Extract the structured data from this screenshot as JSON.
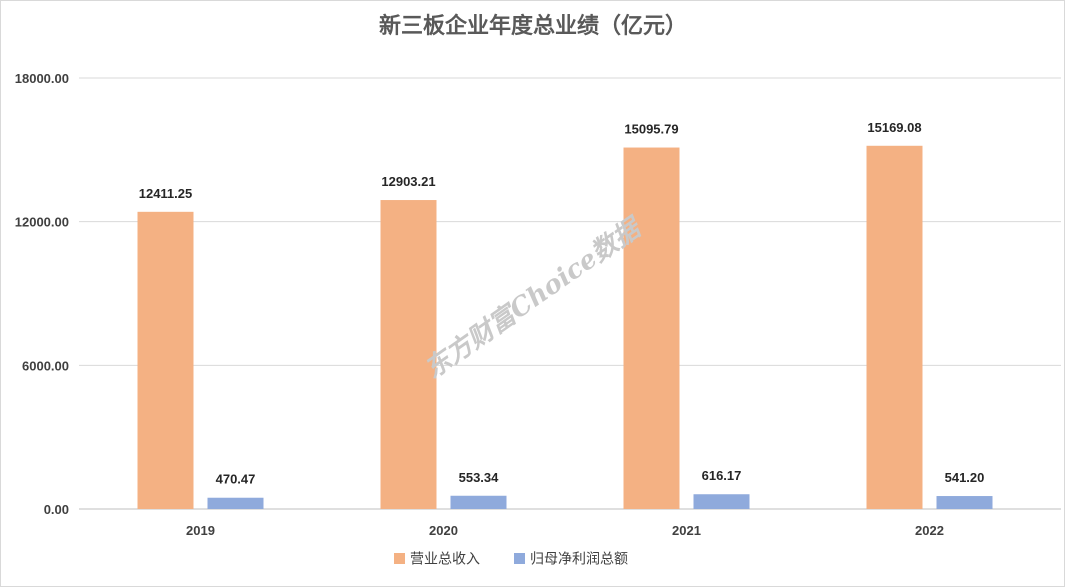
{
  "chart_data": {
    "type": "bar",
    "title": "新三板企业年度总业绩（亿元）",
    "categories": [
      "2019",
      "2020",
      "2021",
      "2022"
    ],
    "series": [
      {
        "name": "营业总收入",
        "values": [
          12411.25,
          12903.21,
          15095.79,
          15169.08
        ],
        "labels": [
          "12411.25",
          "12903.21",
          "15095.79",
          "15169.08"
        ],
        "color": "#F4B183"
      },
      {
        "name": "归母净利润总额",
        "values": [
          470.47,
          553.34,
          616.17,
          541.2
        ],
        "labels": [
          "470.47",
          "553.34",
          "616.17",
          "541.20"
        ],
        "color": "#8FAADC"
      }
    ],
    "yticks": [
      0,
      6000,
      12000,
      18000
    ],
    "ytick_labels": [
      "0.00",
      "6000.00",
      "12000.00",
      "18000.00"
    ],
    "ylim": [
      0,
      18000
    ],
    "grid": true,
    "legend_position": "bottom",
    "xlabel": "",
    "ylabel": ""
  },
  "watermark": {
    "text": "东方财富Choice数据"
  },
  "colors": {
    "gridline": "#D9D9D9",
    "axis": "#BFBFBF"
  }
}
